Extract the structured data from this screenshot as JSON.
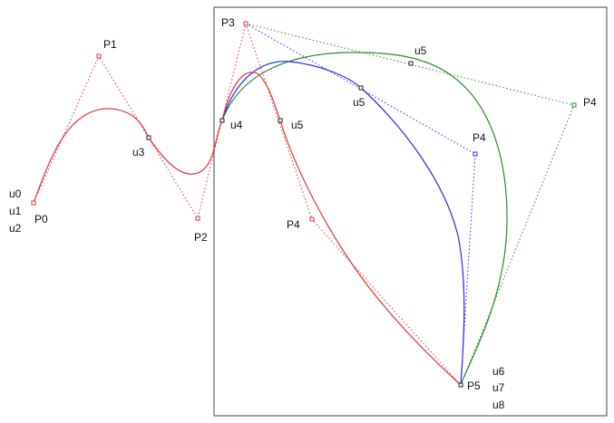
{
  "colors": {
    "red": "#e8323c",
    "blue": "#2a2af0",
    "green": "#2e8b2e",
    "frame": "#444444",
    "text": "#111111"
  },
  "labels": {
    "p0": "P0",
    "p1": "P1",
    "p2": "P2",
    "p3": "P3",
    "p4_red": "P4",
    "p4_blue": "P4",
    "p4_green": "P4",
    "p5": "P5",
    "u0": "u0",
    "u1": "u1",
    "u2": "u2",
    "u3": "u3",
    "u4": "u4",
    "u5_red": "u5",
    "u5_blue": "u5",
    "u5_green": "u5",
    "u6": "u6",
    "u7": "u7",
    "u8": "u8"
  }
}
